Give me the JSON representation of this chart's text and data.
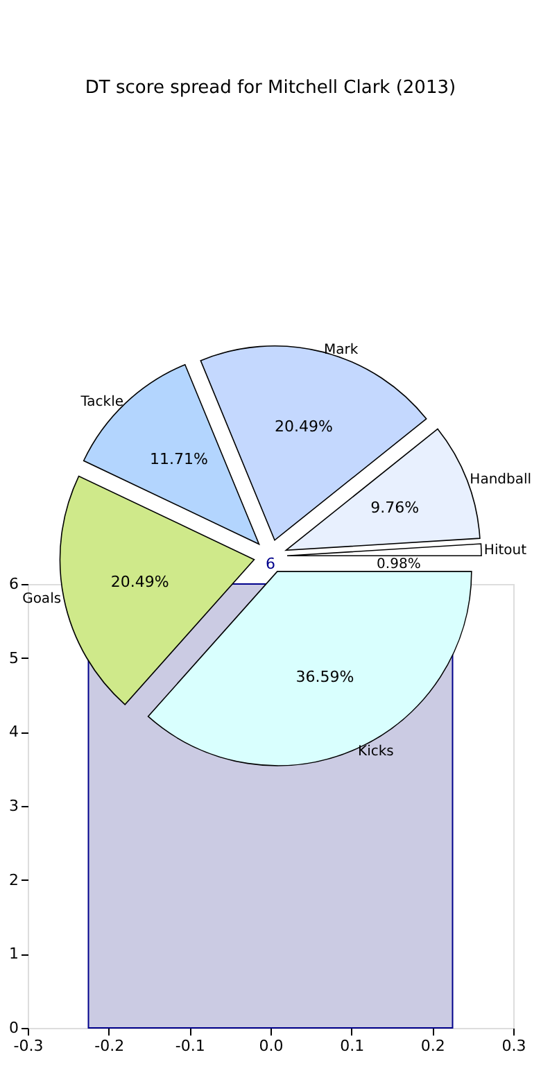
{
  "chart_data": [
    {
      "type": "pie",
      "title": "DT score spread for Mitchell Clark (2013)",
      "categories": [
        "Hitout",
        "Handball",
        "Mark",
        "Tackle",
        "Goals",
        "Kicks"
      ],
      "values": [
        0.98,
        9.76,
        20.49,
        11.71,
        20.49,
        36.59
      ],
      "value_labels": [
        "0.98%",
        "9.76%",
        "20.49%",
        "11.71%",
        "20.49%",
        "36.59%"
      ],
      "colors": [
        "#ffffff",
        "#e8f0fe",
        "#c4d8fe",
        "#b3d5fe",
        "#cfe98a",
        "#d9fffe"
      ]
    },
    {
      "type": "histogram",
      "bins": [
        -0.225,
        0.225
      ],
      "values": [
        6
      ],
      "color": "#cbcbe3",
      "xlim": [
        -0.3,
        0.3
      ],
      "xticks": [
        {
          "value": -0.3,
          "label": "-0.3"
        },
        {
          "value": -0.2,
          "label": "-0.2"
        },
        {
          "value": -0.1,
          "label": "-0.1"
        },
        {
          "value": 0,
          "label": "0.0"
        },
        {
          "value": 0.1,
          "label": "0.1"
        },
        {
          "value": 0.2,
          "label": "0.2"
        },
        {
          "value": 0.3,
          "label": "0.3"
        }
      ],
      "ylim": [
        0,
        6
      ],
      "yticks": [
        0,
        1,
        2,
        3,
        4,
        5,
        6
      ],
      "annotations": [
        {
          "text": "6",
          "x": 0,
          "y": 6
        }
      ]
    }
  ]
}
